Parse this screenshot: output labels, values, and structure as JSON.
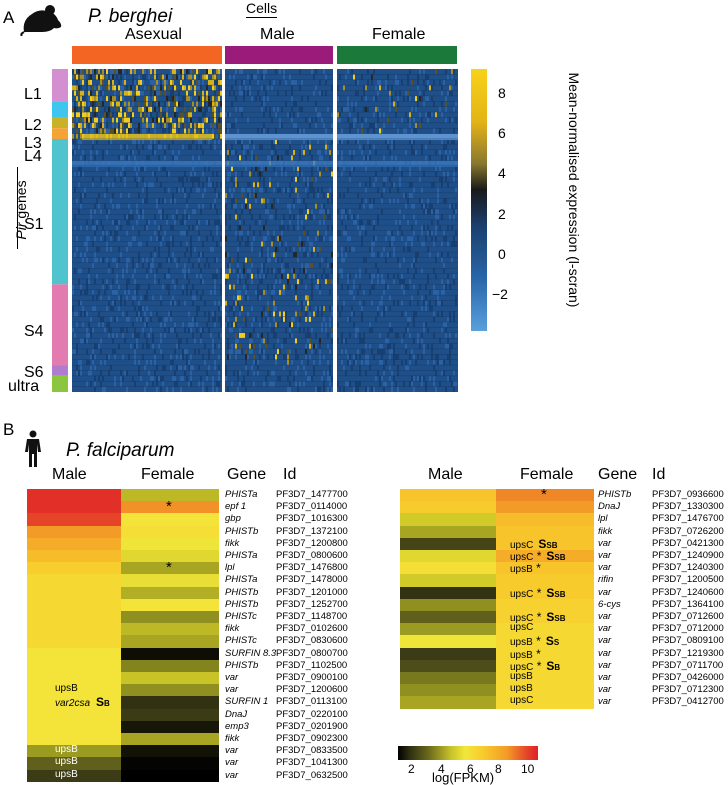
{
  "panel_a": {
    "label": "A",
    "title": "P. berghei",
    "cells_header": "Cells",
    "groups": [
      "Asexual",
      "Male",
      "Female"
    ],
    "group_colors": [
      "#f26522",
      "#9b1b7a",
      "#1b7a3a"
    ],
    "row_groups": [
      {
        "label": "L1",
        "color": "#d38fcf"
      },
      {
        "label": "L2",
        "color": "#3fc6ee"
      },
      {
        "label": "L3",
        "color": "#c9b227"
      },
      {
        "label": "L4",
        "color": "#f4a334"
      },
      {
        "label": "S1",
        "color": "#4fc4cf"
      },
      {
        "label": "S4",
        "color": "#e27bb0"
      },
      {
        "label": "S6",
        "color": "#b07ccf"
      },
      {
        "label": "ultra",
        "color": "#8cc63f"
      }
    ],
    "pir_label_italic": "Pir",
    "pir_label_rest": " genes",
    "colorbar": {
      "title": "Mean-normalised expression (l-scran)",
      "ticks": [
        "8",
        "6",
        "4",
        "2",
        "0",
        "−2"
      ]
    }
  },
  "panel_b": {
    "label": "B",
    "title": "P. falciparum",
    "left_table": {
      "headers": {
        "male": "Male",
        "female": "Female",
        "gene": "Gene",
        "id": "Id"
      },
      "rows": [
        {
          "gene": "PHISTa",
          "id": "PF3D7_1477700",
          "male": 9.6,
          "female": 4.2
        },
        {
          "gene": "epf 1",
          "id": "PF3D7_0114000",
          "male": 9.6,
          "female": 7.8,
          "female_star": true
        },
        {
          "gene": "gbp",
          "id": "PF3D7_1016300",
          "male": 9.2,
          "female": 5.6
        },
        {
          "gene": "PHISTb",
          "id": "PF3D7_1372100",
          "male": 7.6,
          "female": 5.8
        },
        {
          "gene": "fikk",
          "id": "PF3D7_1200800",
          "male": 7.2,
          "female": 5.4
        },
        {
          "gene": "PHISTa",
          "id": "PF3D7_0800600",
          "male": 6.8,
          "female": 5.0
        },
        {
          "gene": "lpl",
          "id": "PF3D7_1476800",
          "male": 6.3,
          "female": 3.8,
          "female_star": true
        },
        {
          "gene": "PHISTa",
          "id": "PF3D7_1478000",
          "male": 6.0,
          "female": 5.2
        },
        {
          "gene": "PHISTb",
          "id": "PF3D7_1201000",
          "male": 6.0,
          "female": 4.0
        },
        {
          "gene": "PHISTb",
          "id": "PF3D7_1252700",
          "male": 6.0,
          "female": 5.6
        },
        {
          "gene": "PHISTc",
          "id": "PF3D7_1148700",
          "male": 6.0,
          "female": 3.4
        },
        {
          "gene": "fikk",
          "id": "PF3D7_0102600",
          "male": 6.0,
          "female": 4.2
        },
        {
          "gene": "PHISTc",
          "id": "PF3D7_0830600",
          "male": 6.0,
          "female": 3.8
        },
        {
          "gene": "SURFIN 8.3",
          "id": "PF3D7_0800700",
          "male": 5.6,
          "female": 0.8
        },
        {
          "gene": "PHISTb",
          "id": "PF3D7_1102500",
          "male": 5.6,
          "female": 3.2
        },
        {
          "gene": "var",
          "id": "PF3D7_0900100",
          "male": 5.6,
          "female": 4.4
        },
        {
          "gene": "var",
          "id": "PF3D7_1200600",
          "male": 5.6,
          "female": 3.4
        },
        {
          "gene": "SURFIN 1",
          "id": "PF3D7_0113100",
          "male": 5.6,
          "female": 1.6
        },
        {
          "gene": "DnaJ",
          "id": "PF3D7_0220100",
          "male": 5.6,
          "female": 1.8
        },
        {
          "gene": "emp3",
          "id": "PF3D7_0201900",
          "male": 5.6,
          "female": 1.0
        },
        {
          "gene": "fikk",
          "id": "PF3D7_0902300",
          "male": 5.6,
          "female": 3.8
        },
        {
          "gene": "var",
          "id": "PF3D7_0833500",
          "male": 3.6,
          "female": 0.9
        },
        {
          "gene": "var",
          "id": "PF3D7_1041300",
          "male": 2.6,
          "female": 0.6
        },
        {
          "gene": "var",
          "id": "PF3D7_0632500",
          "male": 1.8,
          "female": 0.4
        }
      ],
      "annotations": [
        {
          "row": 16,
          "text": "upsB"
        },
        {
          "row": 17,
          "text": "var2csa",
          "italic": true,
          "sub": "S",
          "subsmall": "B"
        },
        {
          "row": 21,
          "text": "upsB"
        },
        {
          "row": 22,
          "text": "upsB"
        },
        {
          "row": 23,
          "text": "upsB"
        }
      ]
    },
    "right_table": {
      "headers": {
        "male": "Male",
        "female": "Female",
        "gene": "Gene",
        "id": "Id"
      },
      "rows": [
        {
          "gene": "PHISTb",
          "id": "PF3D7_0936600",
          "male": 6.6,
          "female": 8.0,
          "female_star": true
        },
        {
          "gene": "DnaJ",
          "id": "PF3D7_1330300",
          "male": 6.4,
          "female": 7.6
        },
        {
          "gene": "lpl",
          "id": "PF3D7_1476700",
          "male": 4.6,
          "female": 6.8
        },
        {
          "gene": "fikk",
          "id": "PF3D7_0726200",
          "male": 3.8,
          "female": 6.6
        },
        {
          "gene": "var",
          "id": "PF3D7_0421300",
          "male": 2.0,
          "female": 6.6,
          "tag": "upsC",
          "sub": "S",
          "subsmall": "SB"
        },
        {
          "gene": "var",
          "id": "PF3D7_1240900",
          "male": 5.0,
          "female": 7.2,
          "tag": "upsC",
          "star": true,
          "sub": "S",
          "subsmall": "SB"
        },
        {
          "gene": "var",
          "id": "PF3D7_1240300",
          "male": 5.8,
          "female": 6.6,
          "tag": "upsB",
          "star": true
        },
        {
          "gene": "rifin",
          "id": "PF3D7_1200500",
          "male": 4.6,
          "female": 6.4
        },
        {
          "gene": "var",
          "id": "PF3D7_1240600",
          "male": 1.6,
          "female": 6.4,
          "tag": "upsC",
          "star": true,
          "sub": "S",
          "subsmall": "SB"
        },
        {
          "gene": "6-cys",
          "id": "PF3D7_1364100",
          "male": 3.4,
          "female": 6.2
        },
        {
          "gene": "var",
          "id": "PF3D7_0712600",
          "male": 2.6,
          "female": 6.2,
          "tag": "upsC",
          "star": true,
          "sub": "S",
          "subsmall": "SB"
        },
        {
          "gene": "var",
          "id": "PF3D7_0712000",
          "male": 3.6,
          "female": 6.0,
          "tag": "upsC"
        },
        {
          "gene": "var",
          "id": "PF3D7_0809100",
          "male": 5.4,
          "female": 6.0,
          "tag": "upsB",
          "star": true,
          "sub": "S",
          "subsmall": "S"
        },
        {
          "gene": "var",
          "id": "PF3D7_1219300",
          "male": 1.8,
          "female": 6.0,
          "tag": "upsB",
          "star": true
        },
        {
          "gene": "var",
          "id": "PF3D7_0711700",
          "male": 2.2,
          "female": 6.0,
          "tag": "upsC",
          "star": true,
          "sub": "S",
          "subsmall": "B"
        },
        {
          "gene": "var",
          "id": "PF3D7_0426000",
          "male": 3.0,
          "female": 6.0,
          "tag": "upsB"
        },
        {
          "gene": "var",
          "id": "PF3D7_0712300",
          "male": 3.4,
          "female": 6.0,
          "tag": "upsB"
        },
        {
          "gene": "var",
          "id": "PF3D7_0412700",
          "male": 3.8,
          "female": 6.0,
          "tag": "upsC"
        }
      ]
    },
    "colorbar": {
      "title": "log(FPKM)",
      "ticks": [
        "2",
        "4",
        "6",
        "8",
        "10"
      ],
      "min": 0.5,
      "max": 10.5
    }
  }
}
